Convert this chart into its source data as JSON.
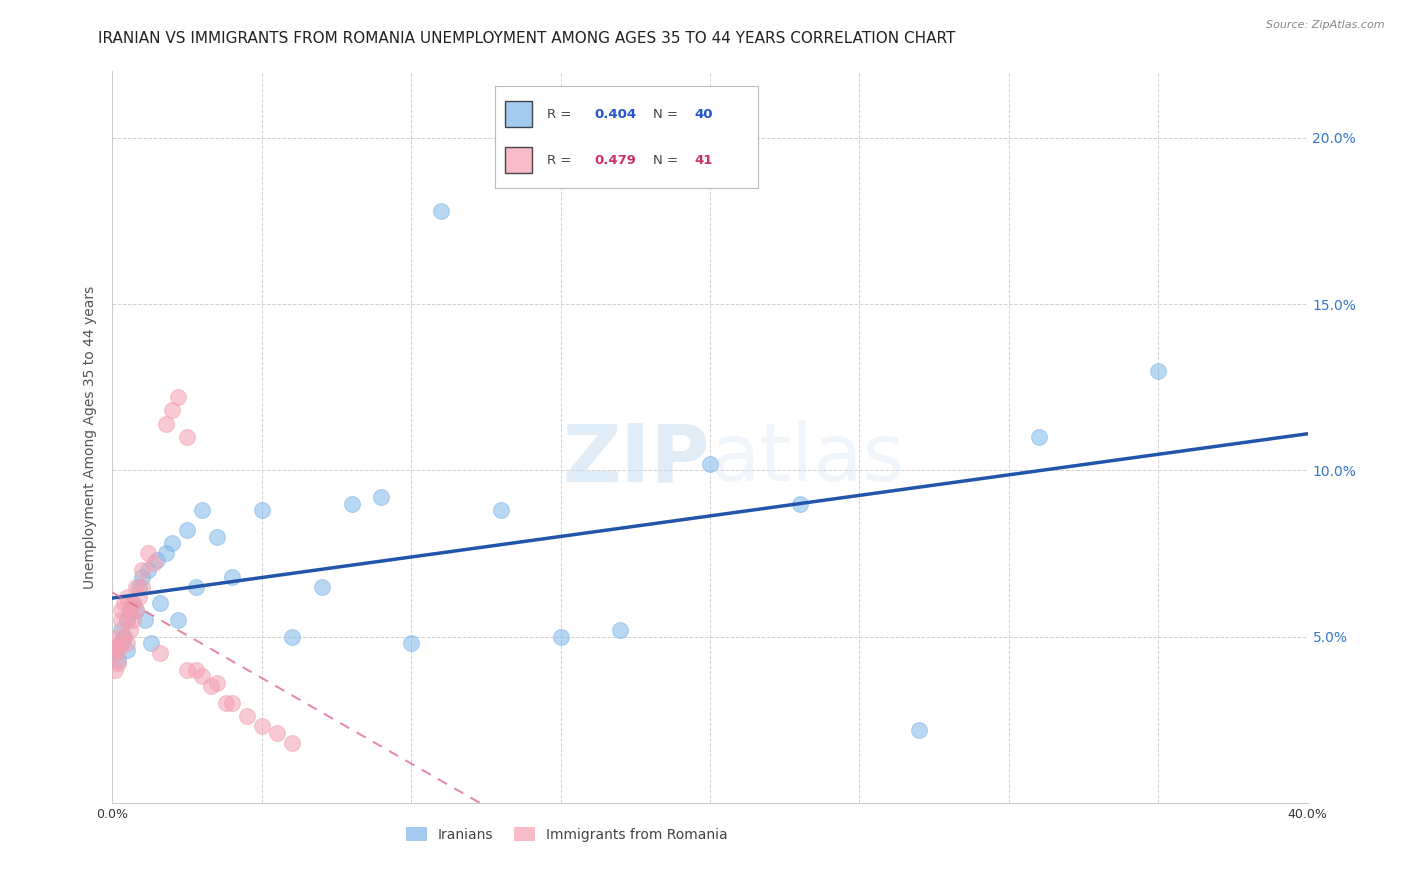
{
  "title": "IRANIAN VS IMMIGRANTS FROM ROMANIA UNEMPLOYMENT AMONG AGES 35 TO 44 YEARS CORRELATION CHART",
  "source": "Source: ZipAtlas.com",
  "ylabel": "Unemployment Among Ages 35 to 44 years",
  "xlim": [
    0,
    0.4
  ],
  "ylim": [
    0,
    0.22
  ],
  "legend_entries": [
    {
      "label": "Iranians",
      "R": 0.404,
      "N": 40,
      "color": "#7eb6e8"
    },
    {
      "label": "Immigrants from Romania",
      "R": 0.479,
      "N": 41,
      "color": "#f4a0b0"
    }
  ],
  "iranians_x": [
    0.001,
    0.002,
    0.003,
    0.003,
    0.004,
    0.005,
    0.005,
    0.006,
    0.007,
    0.008,
    0.009,
    0.01,
    0.011,
    0.012,
    0.013,
    0.015,
    0.016,
    0.018,
    0.02,
    0.022,
    0.025,
    0.028,
    0.03,
    0.035,
    0.04,
    0.05,
    0.06,
    0.07,
    0.08,
    0.09,
    0.1,
    0.11,
    0.13,
    0.15,
    0.17,
    0.2,
    0.23,
    0.27,
    0.31,
    0.35
  ],
  "iranians_y": [
    0.045,
    0.043,
    0.048,
    0.052,
    0.05,
    0.046,
    0.055,
    0.057,
    0.06,
    0.058,
    0.065,
    0.068,
    0.055,
    0.07,
    0.048,
    0.073,
    0.06,
    0.075,
    0.078,
    0.055,
    0.082,
    0.065,
    0.088,
    0.08,
    0.068,
    0.088,
    0.05,
    0.065,
    0.09,
    0.092,
    0.048,
    0.178,
    0.088,
    0.05,
    0.052,
    0.102,
    0.09,
    0.022,
    0.11,
    0.13
  ],
  "romania_x": [
    0.0005,
    0.001,
    0.001,
    0.002,
    0.002,
    0.002,
    0.003,
    0.003,
    0.003,
    0.004,
    0.004,
    0.005,
    0.005,
    0.005,
    0.006,
    0.006,
    0.007,
    0.007,
    0.008,
    0.008,
    0.009,
    0.01,
    0.01,
    0.012,
    0.014,
    0.016,
    0.018,
    0.02,
    0.022,
    0.025,
    0.025,
    0.028,
    0.03,
    0.033,
    0.035,
    0.038,
    0.04,
    0.045,
    0.05,
    0.055,
    0.06
  ],
  "romania_y": [
    0.045,
    0.04,
    0.047,
    0.042,
    0.05,
    0.046,
    0.048,
    0.055,
    0.058,
    0.05,
    0.06,
    0.048,
    0.055,
    0.062,
    0.052,
    0.058,
    0.055,
    0.06,
    0.058,
    0.065,
    0.062,
    0.065,
    0.07,
    0.075,
    0.072,
    0.045,
    0.114,
    0.118,
    0.122,
    0.11,
    0.04,
    0.04,
    0.038,
    0.035,
    0.036,
    0.03,
    0.03,
    0.026,
    0.023,
    0.021,
    0.018
  ],
  "blue_color": "#7eb6e8",
  "pink_color": "#f4a0b0",
  "blue_line_color": "#2255aa",
  "pink_line_color": "#e07090",
  "background_color": "#ffffff",
  "grid_color": "#cccccc",
  "watermark_zip": "ZIP",
  "watermark_atlas": "atlas",
  "title_fontsize": 11,
  "axis_label_fontsize": 10,
  "tick_fontsize": 9
}
